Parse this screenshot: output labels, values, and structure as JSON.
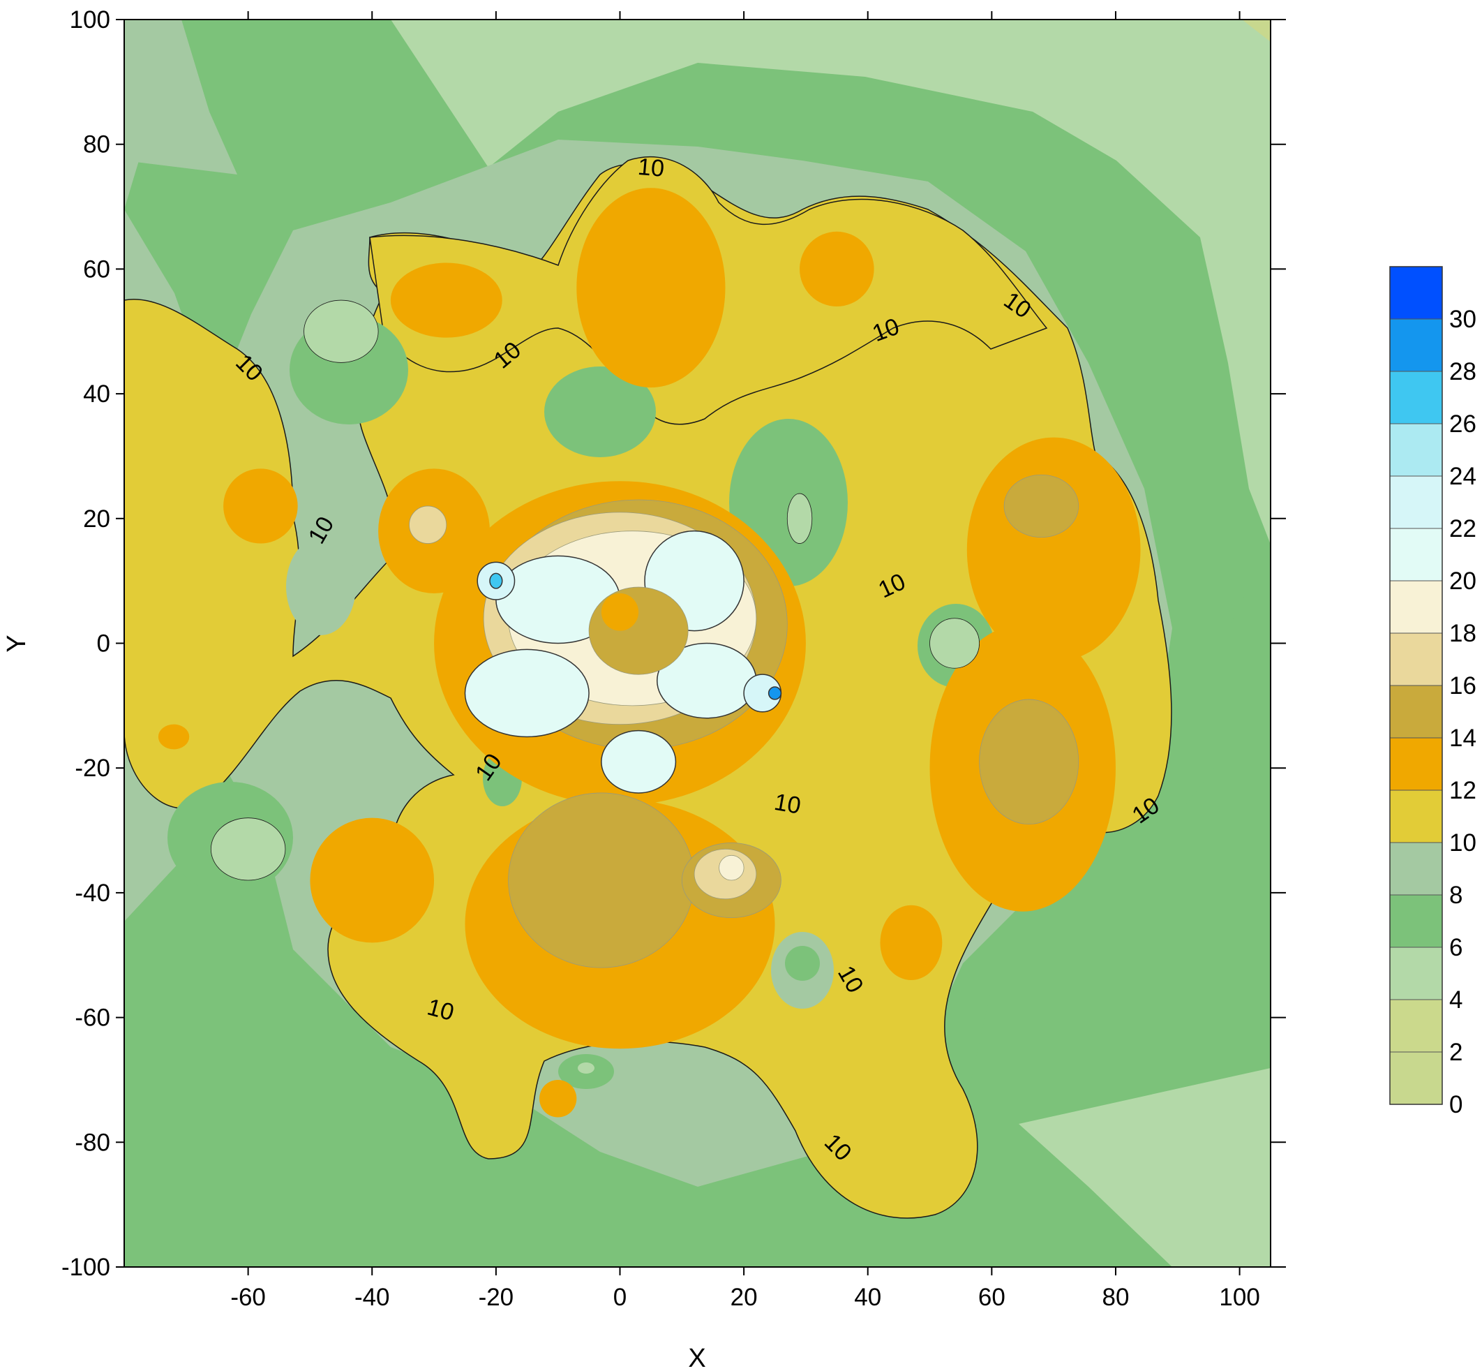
{
  "chart_data": {
    "type": "heatmap",
    "subtype": "filled-contour",
    "title": "",
    "xlabel": "X",
    "ylabel": "Y",
    "xlim": [
      -80,
      105
    ],
    "ylim": [
      -100,
      100
    ],
    "xticks": [
      -60,
      -40,
      -20,
      0,
      20,
      40,
      60,
      80,
      100
    ],
    "yticks": [
      -100,
      -80,
      -60,
      -40,
      -20,
      0,
      20,
      40,
      60,
      80,
      100
    ],
    "grid": false,
    "levels": [
      0,
      2,
      4,
      6,
      8,
      10,
      12,
      14,
      16,
      18,
      20,
      22,
      24,
      26,
      28,
      30
    ],
    "colors": [
      "#c8d88e",
      "#cbd98c",
      "#b3d9a8",
      "#7cc27a",
      "#a4c9a2",
      "#e2cc37",
      "#f0a800",
      "#c9aa3c",
      "#ead89c",
      "#f8f2d6",
      "#e2fbf6",
      "#d6f6f8",
      "#aceaf2",
      "#3fc7f1",
      "#1496ee",
      "#0050ff"
    ],
    "contour_line_level": 10,
    "contour_labels": [
      {
        "text": "10",
        "x": 5,
        "y": 76,
        "angle": 5
      },
      {
        "text": "10",
        "x": -18,
        "y": 46,
        "angle": -40
      },
      {
        "text": "10",
        "x": -60,
        "y": 44,
        "angle": 45
      },
      {
        "text": "10",
        "x": 43,
        "y": 50,
        "angle": -20
      },
      {
        "text": "10",
        "x": 64,
        "y": 54,
        "angle": 35
      },
      {
        "text": "10",
        "x": -48,
        "y": 18,
        "angle": -60
      },
      {
        "text": "10",
        "x": 44,
        "y": 9,
        "angle": -25
      },
      {
        "text": "10",
        "x": -21,
        "y": -20,
        "angle": -55
      },
      {
        "text": "10",
        "x": 27,
        "y": -26,
        "angle": 10
      },
      {
        "text": "10",
        "x": 85,
        "y": -27,
        "angle": -35
      },
      {
        "text": "10",
        "x": -29,
        "y": -59,
        "angle": 15
      },
      {
        "text": "10",
        "x": 37,
        "y": -54,
        "angle": 60
      },
      {
        "text": "10",
        "x": 35,
        "y": -81,
        "angle": 45
      }
    ],
    "features": [
      {
        "kind": "ellipse",
        "x": 0,
        "y": 0,
        "rx": 30,
        "ry": 26,
        "level": 12
      },
      {
        "kind": "ellipse",
        "x": 70,
        "y": 15,
        "rx": 14,
        "ry": 18,
        "level": 12
      },
      {
        "kind": "ellipse",
        "x": 68,
        "y": 22,
        "rx": 6,
        "ry": 5,
        "level": 14
      },
      {
        "kind": "ellipse",
        "x": 65,
        "y": -20,
        "rx": 15,
        "ry": 23,
        "level": 12
      },
      {
        "kind": "ellipse",
        "x": 66,
        "y": -19,
        "rx": 8,
        "ry": 10,
        "level": 14
      },
      {
        "kind": "ellipse",
        "x": 5,
        "y": 57,
        "rx": 12,
        "ry": 16,
        "level": 12
      },
      {
        "kind": "ellipse",
        "x": 35,
        "y": 60,
        "rx": 6,
        "ry": 6,
        "level": 12
      },
      {
        "kind": "ellipse",
        "x": -28,
        "y": 55,
        "rx": 9,
        "ry": 6,
        "level": 12
      },
      {
        "kind": "ellipse",
        "x": -58,
        "y": 22,
        "rx": 6,
        "ry": 6,
        "level": 12
      },
      {
        "kind": "ellipse",
        "x": -30,
        "y": 18,
        "rx": 9,
        "ry": 10,
        "level": 12
      },
      {
        "kind": "ellipse",
        "x": -31,
        "y": 19,
        "rx": 3,
        "ry": 3,
        "level": 16
      },
      {
        "kind": "ellipse",
        "x": -40,
        "y": -38,
        "rx": 10,
        "ry": 10,
        "level": 12
      },
      {
        "kind": "ellipse",
        "x": 0,
        "y": -45,
        "rx": 25,
        "ry": 20,
        "level": 12
      },
      {
        "kind": "ellipse",
        "x": -3,
        "y": -38,
        "rx": 15,
        "ry": 14,
        "level": 14
      },
      {
        "kind": "ellipse",
        "x": 18,
        "y": -38,
        "rx": 8,
        "ry": 6,
        "level": 14
      },
      {
        "kind": "ellipse",
        "x": 17,
        "y": -37,
        "rx": 5,
        "ry": 4,
        "level": 16
      },
      {
        "kind": "ellipse",
        "x": 18,
        "y": -36,
        "rx": 2,
        "ry": 2,
        "level": 18
      },
      {
        "kind": "ellipse",
        "x": -10,
        "y": -73,
        "rx": 3,
        "ry": 3,
        "level": 12
      },
      {
        "kind": "ellipse",
        "x": -72,
        "y": -15,
        "rx": 2.5,
        "ry": 2,
        "level": 12
      },
      {
        "kind": "ellipse",
        "x": 47,
        "y": -48,
        "rx": 5,
        "ry": 6,
        "level": 12
      },
      {
        "kind": "ellipse",
        "x": 3,
        "y": 3,
        "rx": 24,
        "ry": 20,
        "level": 14
      },
      {
        "kind": "ellipse",
        "x": 0,
        "y": 4,
        "rx": 22,
        "ry": 17,
        "level": 16
      },
      {
        "kind": "ellipse",
        "x": 2,
        "y": 4,
        "rx": 20,
        "ry": 14,
        "level": 18
      },
      {
        "kind": "ellipse",
        "x": -10,
        "y": 7,
        "rx": 10,
        "ry": 7,
        "level": 20
      },
      {
        "kind": "ellipse",
        "x": 12,
        "y": 10,
        "rx": 8,
        "ry": 8,
        "level": 20
      },
      {
        "kind": "ellipse",
        "x": -15,
        "y": -8,
        "rx": 10,
        "ry": 7,
        "level": 20
      },
      {
        "kind": "ellipse",
        "x": 14,
        "y": -6,
        "rx": 8,
        "ry": 6,
        "level": 20
      },
      {
        "kind": "ellipse",
        "x": 3,
        "y": -19,
        "rx": 6,
        "ry": 5,
        "level": 20
      },
      {
        "kind": "ellipse",
        "x": -20,
        "y": 10,
        "rx": 3,
        "ry": 3,
        "level": 22
      },
      {
        "kind": "ellipse",
        "x": 23,
        "y": -8,
        "rx": 3,
        "ry": 3,
        "level": 22
      },
      {
        "kind": "ellipse",
        "x": -20,
        "y": 10,
        "rx": 1,
        "ry": 1.2,
        "level": 26
      },
      {
        "kind": "ellipse",
        "x": 25,
        "y": -8,
        "rx": 1,
        "ry": 1,
        "level": 28
      },
      {
        "kind": "ellipse",
        "x": 3,
        "y": 2,
        "rx": 8,
        "ry": 7,
        "level": 14
      },
      {
        "kind": "ellipse",
        "x": 0,
        "y": 5,
        "rx": 3,
        "ry": 3,
        "level": 12
      },
      {
        "kind": "ellipse",
        "x": -45,
        "y": 50,
        "rx": 6,
        "ry": 5,
        "level": 4
      },
      {
        "kind": "ellipse",
        "x": -60,
        "y": -33,
        "rx": 6,
        "ry": 5,
        "level": 4
      },
      {
        "kind": "ellipse",
        "x": 54,
        "y": 0,
        "rx": 4,
        "ry": 4,
        "level": 4
      },
      {
        "kind": "ellipse",
        "x": 29,
        "y": 20,
        "rx": 2,
        "ry": 4,
        "level": 4
      }
    ]
  },
  "colorbar": {
    "labels": [
      "30",
      "28",
      "26",
      "24",
      "22",
      "20",
      "18",
      "16",
      "14",
      "12",
      "10",
      "8",
      "6",
      "4",
      "2",
      "0"
    ]
  }
}
